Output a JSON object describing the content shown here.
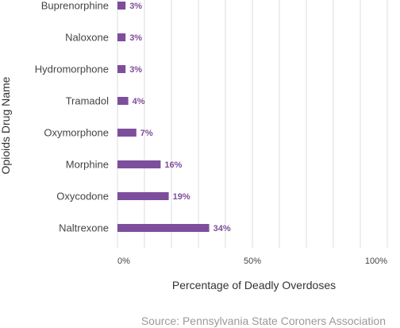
{
  "chart_data": {
    "type": "bar",
    "orientation": "horizontal",
    "categories": [
      "Buprenorphine",
      "Naloxone",
      "Hydromorphone",
      "Tramadol",
      "Oxymorphone",
      "Morphine",
      "Oxycodone",
      "Naltrexone"
    ],
    "values": [
      3,
      3,
      3,
      4,
      7,
      16,
      19,
      34
    ],
    "data_labels": [
      "3%",
      "3%",
      "3%",
      "4%",
      "7%",
      "16%",
      "19%",
      "34%"
    ],
    "xlabel": "Percentage of Deadly Overdoses",
    "ylabel": "Opioids Drug Name",
    "xlim": [
      0,
      100
    ],
    "x_ticks": [
      0,
      50,
      100
    ],
    "x_tick_labels": [
      "0%",
      "50%",
      "100%"
    ],
    "grid": true,
    "bar_color": "#7d4e9c",
    "label_color": "#7d4e9c"
  },
  "source": "Source: Pennsylvania State Coroners Association"
}
